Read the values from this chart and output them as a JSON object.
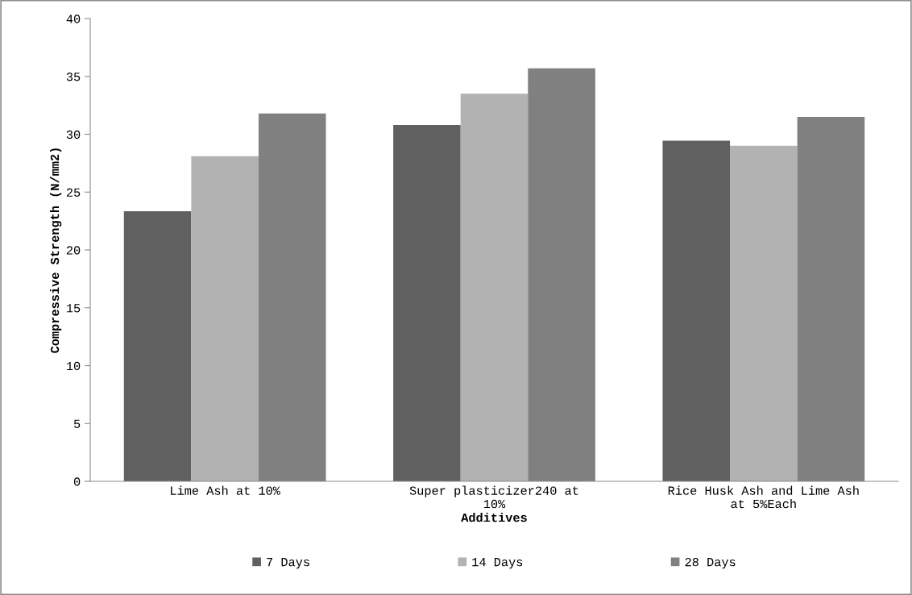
{
  "chart_data": {
    "type": "bar",
    "xlabel": "Additives",
    "ylabel": "Compressive Strength (N/mm2)",
    "categories": [
      "Lime Ash at 10%",
      "Super plasticizer240 at\n10%",
      "Rice Husk Ash and Lime Ash\nat 5%Each"
    ],
    "series": [
      {
        "name": "7 Days",
        "color": "#606060",
        "values": [
          23.35,
          30.8,
          29.45
        ]
      },
      {
        "name": "14 Days",
        "color": "#b2b2b2",
        "values": [
          28.1,
          33.5,
          29.0
        ]
      },
      {
        "name": "28 Days",
        "color": "#808080",
        "values": [
          31.8,
          35.7,
          31.5
        ]
      }
    ],
    "ylim": [
      0,
      40
    ],
    "yticks": [
      0,
      5,
      10,
      15,
      20,
      25,
      30,
      35,
      40
    ],
    "grid": false,
    "legend": "bottom"
  }
}
